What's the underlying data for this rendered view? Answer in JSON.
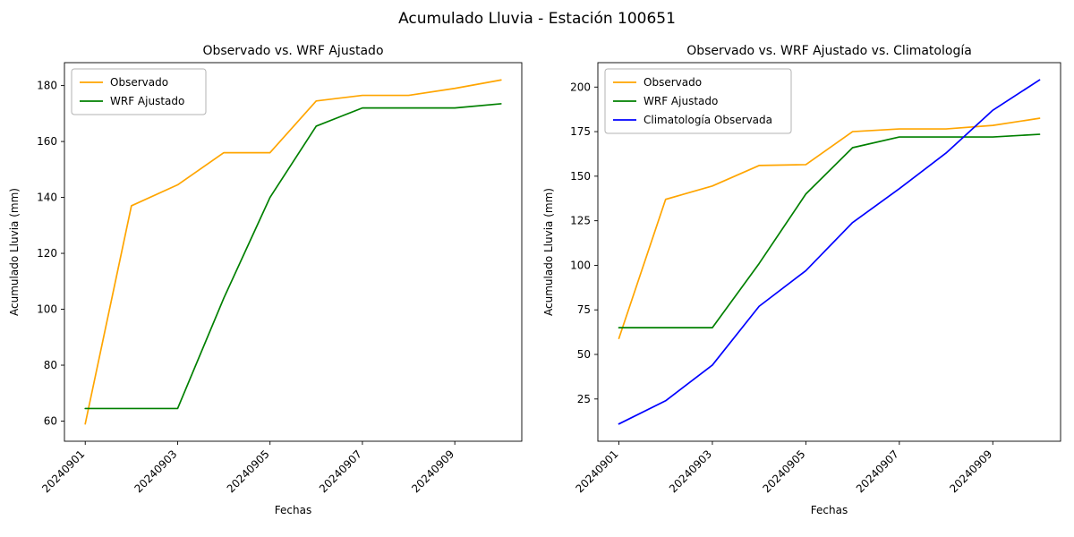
{
  "figure_title": "Acumulado Lluvia - Estación 100651",
  "chart_data": [
    {
      "type": "line",
      "title": "Observado vs. WRF Ajustado",
      "xlabel": "Fechas",
      "ylabel": "Acumulado Lluvia (mm)",
      "x": [
        "20240901",
        "20240902",
        "20240903",
        "20240904",
        "20240905",
        "20240906",
        "20240907",
        "20240908",
        "20240909",
        "20240910"
      ],
      "xticks": [
        "20240901",
        "20240903",
        "20240905",
        "20240907",
        "20240909"
      ],
      "yticks": [
        60,
        80,
        100,
        120,
        140,
        160,
        180
      ],
      "ylim": [
        52.8,
        188.2
      ],
      "grid": false,
      "legend_position": "upper left",
      "series": [
        {
          "name": "Observado",
          "color": "#ffa500",
          "values": [
            59,
            137,
            144.5,
            156,
            156,
            174.5,
            176.5,
            176.5,
            179,
            182
          ]
        },
        {
          "name": "WRF Ajustado",
          "color": "#008000",
          "values": [
            64.5,
            64.5,
            64.5,
            104,
            140,
            165.5,
            172,
            172,
            172,
            173.5
          ]
        }
      ]
    },
    {
      "type": "line",
      "title": "Observado vs. WRF Ajustado vs. Climatología",
      "xlabel": "Fechas",
      "ylabel": "Acumulado Lluvia (mm)",
      "x": [
        "20240901",
        "20240902",
        "20240903",
        "20240904",
        "20240905",
        "20240906",
        "20240907",
        "20240908",
        "20240909",
        "20240910"
      ],
      "xticks": [
        "20240901",
        "20240903",
        "20240905",
        "20240907",
        "20240909"
      ],
      "yticks": [
        25,
        50,
        75,
        100,
        125,
        150,
        175,
        200
      ],
      "ylim": [
        1.3,
        213.7
      ],
      "grid": false,
      "legend_position": "upper left",
      "series": [
        {
          "name": "Observado",
          "color": "#ffa500",
          "values": [
            59,
            137,
            144.5,
            156,
            156.5,
            175,
            176.5,
            176.5,
            178.5,
            182.5
          ]
        },
        {
          "name": "WRF Ajustado",
          "color": "#008000",
          "values": [
            65,
            65,
            65,
            101,
            140,
            166,
            172,
            172,
            172,
            173.5
          ]
        },
        {
          "name": "Climatología Observada",
          "color": "#0000ff",
          "values": [
            11,
            24,
            44,
            77,
            97,
            124,
            143,
            163,
            187,
            204
          ]
        }
      ]
    }
  ]
}
